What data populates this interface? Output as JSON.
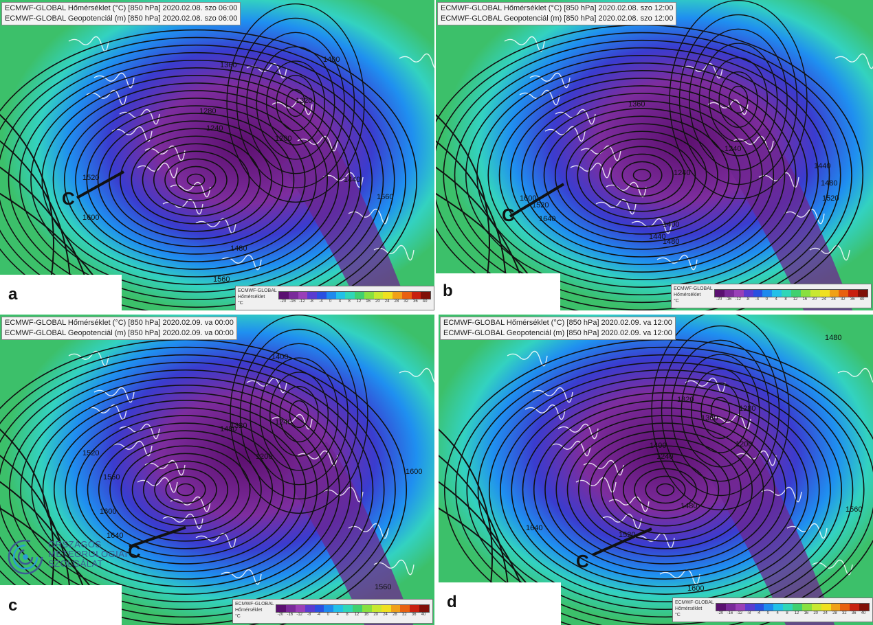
{
  "panels": [
    {
      "id": "a",
      "letter": "a",
      "header_line1": "ECMWF-GLOBAL Hőmérséklet (°C) [850 hPa] 2020.02.08. szo 06:00",
      "header_line2": "ECMWF-GLOBAL Geopotenciál (m) [850 hPa] 2020.02.08. szo 06:00",
      "front_label": "C",
      "contour_labels": [
        "1520",
        "1600",
        "1480",
        "1560",
        "1400",
        "1320",
        "1240",
        "1200",
        "1280",
        "1360",
        "1440",
        "1560"
      ]
    },
    {
      "id": "b",
      "letter": "b",
      "header_line1": "ECMWF-GLOBAL Hőmérséklet (°C) [850 hPa] 2020.02.08. szo 12:00",
      "header_line2": "ECMWF-GLOBAL Geopotenciál (m) [850 hPa] 2020.02.08. szo 12:00",
      "front_label": "C",
      "contour_labels": [
        "1600",
        "1520",
        "1640",
        "1480",
        "1440",
        "1400",
        "1360",
        "1240",
        "1240",
        "1440",
        "1480",
        "1520"
      ]
    },
    {
      "id": "c",
      "letter": "c",
      "header_line1": "ECMWF-GLOBAL Hőmérséklet (°C) [850 hPa] 2020.02.09. va 00:00",
      "header_line2": "ECMWF-GLOBAL Geopotenciál (m) [850 hPa] 2020.02.09. va 00:00",
      "front_label": "C",
      "contour_labels": [
        "1600",
        "1640",
        "1520",
        "1560",
        "1480",
        "1400",
        "1320",
        "1200",
        "1240",
        "1560",
        "1600"
      ]
    },
    {
      "id": "d",
      "letter": "d",
      "header_line1": "ECMWF-GLOBAL Hőmérséklet (°C) [850 hPa] 2020.02.09. va 12:00",
      "header_line2": "ECMWF-GLOBAL Geopotenciál (m) [850 hPa] 2020.02.09. va 12:00",
      "front_label": "C",
      "contour_labels": [
        "1640",
        "1600",
        "1520",
        "1480",
        "1400",
        "1320",
        "1240",
        "1200",
        "1280",
        "1360",
        "1480",
        "1560"
      ]
    }
  ],
  "legend": {
    "title_line1": "ECMWF-GLOBAL",
    "title_line2": "Hőmérséklet",
    "unit": "°C",
    "ticks": [
      "-20",
      "-16",
      "-12",
      "-8",
      "-4",
      "0",
      "4",
      "8",
      "12",
      "16",
      "20",
      "24",
      "28",
      "32",
      "36",
      "40"
    ],
    "colors": [
      "#5a1070",
      "#7a2a9a",
      "#9a40b8",
      "#5a3cd0",
      "#2a50e0",
      "#1e8aee",
      "#22c0e8",
      "#30d6b8",
      "#40d070",
      "#88e040",
      "#c8e830",
      "#f0e020",
      "#f0a018",
      "#e86010",
      "#c82010",
      "#801008"
    ]
  },
  "logo": {
    "line1": "ORSZÁGOS",
    "line2": "METEOROLÓGIAI",
    "line3": "SZOLGÁLAT"
  }
}
